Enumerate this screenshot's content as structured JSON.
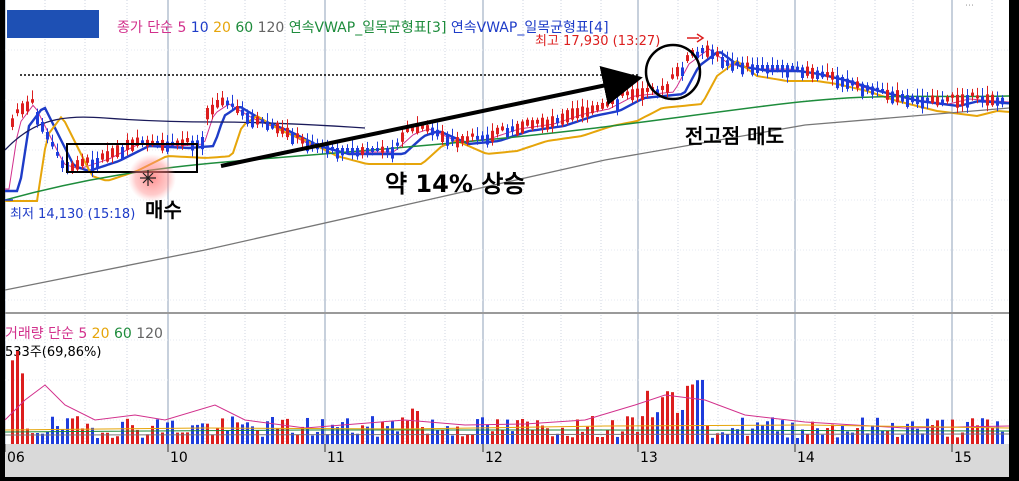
{
  "price_panel": {
    "legend": [
      {
        "text": "종가",
        "color": "#d2308c"
      },
      {
        "text": "단순",
        "color": "#d2308c"
      },
      {
        "text": "5",
        "color": "#d2308c"
      },
      {
        "text": "10",
        "color": "#1e3cc8"
      },
      {
        "text": "20",
        "color": "#e6a50a"
      },
      {
        "text": "60",
        "color": "#1e8c3c"
      },
      {
        "text": "120",
        "color": "#646464"
      },
      {
        "text": "연속VWAP_일목균형표[3]",
        "color": "#1e8c3c"
      },
      {
        "text": "연속VWAP_일목균형표[4]",
        "color": "#1e3cc8"
      }
    ],
    "high_label": "최고 17,930 (13:27)",
    "low_label": "최저 14,130 (15:18)",
    "annotations": {
      "buy": "매수",
      "rise": "약 14% 상승",
      "sell": "전고점 매도"
    }
  },
  "volume_panel": {
    "legend": [
      {
        "text": "거래량",
        "color": "#d2308c"
      },
      {
        "text": "단순",
        "color": "#d2308c"
      },
      {
        "text": "5",
        "color": "#d2308c"
      },
      {
        "text": "20",
        "color": "#e6a50a"
      },
      {
        "text": "60",
        "color": "#1e8c3c"
      },
      {
        "text": "120",
        "color": "#646464"
      }
    ],
    "info": "533주(69,86%)"
  },
  "x_axis": {
    "ticks": [
      "06",
      "10",
      "11",
      "12",
      "13",
      "14",
      "15"
    ]
  },
  "chart_data": {
    "type": "candlestick",
    "x_ticks": [
      "06",
      "10",
      "11",
      "12",
      "13",
      "14",
      "15"
    ],
    "high": 17930,
    "high_time": "13:27",
    "low": 14130,
    "low_time": "15:18",
    "rise_annotation": "약 14% 상승",
    "series": [
      {
        "name": "5",
        "type": "moving-average",
        "color": "#d2308c"
      },
      {
        "name": "10",
        "type": "moving-average",
        "color": "#1e3cc8"
      },
      {
        "name": "20",
        "type": "moving-average",
        "color": "#e6a50a"
      },
      {
        "name": "60",
        "type": "moving-average",
        "color": "#1e8c3c"
      },
      {
        "name": "120",
        "type": "moving-average",
        "color": "#646464"
      }
    ],
    "volume_info": "533주(69,86%)",
    "grid": true,
    "candle_colors": {
      "up": "#dc1e1e",
      "down": "#1e3cdc"
    }
  }
}
